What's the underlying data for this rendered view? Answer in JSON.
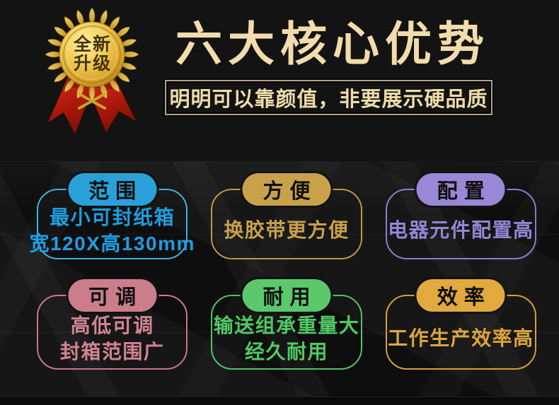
{
  "badge": {
    "lines": [
      "全新",
      "升级"
    ],
    "gold_color": "#d9a52c",
    "ribbon_color": "#c81f12",
    "text_color": "#46340e"
  },
  "header": {
    "title": "六大核心优势",
    "title_color": "#f2dcab",
    "subtitle": "明明可以靠颜值，非要展示硬品质",
    "subtitle_color": "#eedcab",
    "subtitle_border_color": "#b2a384"
  },
  "features": {
    "items": [
      {
        "tag": "范围",
        "lines": [
          "最小可封纸箱",
          "宽120X高130mm"
        ],
        "pill_color": "#2aa0d8",
        "border_color": "#3fb3e2",
        "text_color": "#1f9de0"
      },
      {
        "tag": "方便",
        "lines": [
          "换胶带更方便"
        ],
        "pill_color": "#c8a14a",
        "border_color": "#bd9843",
        "text_color": "#c8a14a"
      },
      {
        "tag": "配置",
        "lines": [
          "电器元件配置高"
        ],
        "pill_color": "#9888d6",
        "border_color": "#8d7cd0",
        "text_color": "#9486d4"
      },
      {
        "tag": "可调",
        "lines": [
          "高低可调",
          "封箱范围广"
        ],
        "pill_color": "#cb7d8b",
        "border_color": "#c67988",
        "text_color": "#d28492"
      },
      {
        "tag": "耐用",
        "lines": [
          "输送组承重量大",
          "经久耐用"
        ],
        "pill_color": "#5bc96b",
        "border_color": "#4fc463",
        "text_color": "#4fca64"
      },
      {
        "tag": "效率",
        "lines": [
          "工作生产效率高"
        ],
        "pill_color": "#e1a93e",
        "border_color": "#d7a036",
        "text_color": "#dca63c"
      }
    ]
  }
}
